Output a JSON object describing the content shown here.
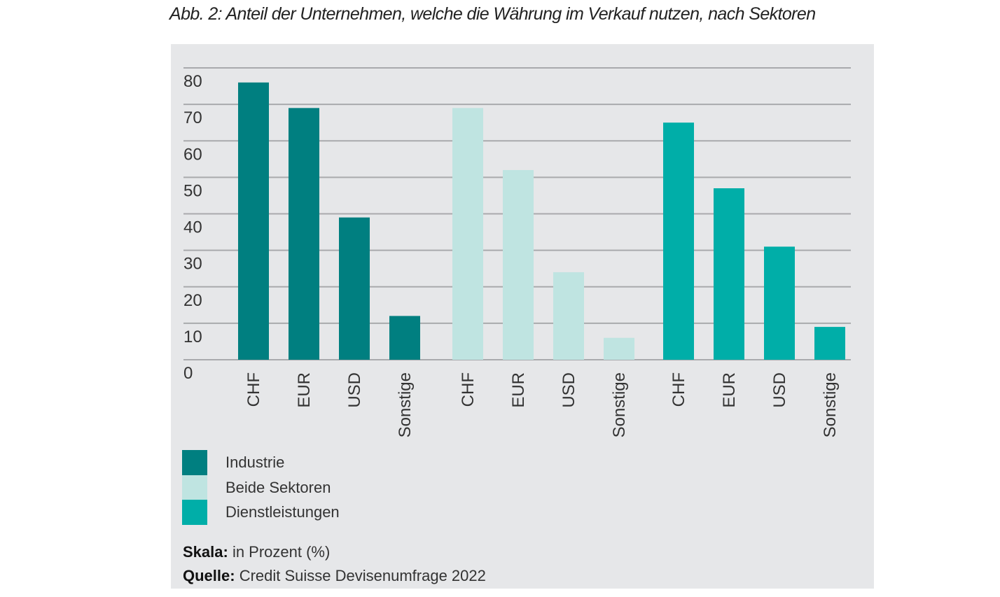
{
  "title": "Abb. 2: Anteil der Unternehmen, welche die Währung im Verkauf nutzen, nach Sektoren",
  "legend": [
    {
      "label": "Industrie",
      "color": "#007f80"
    },
    {
      "label": "Beide Sektoren",
      "color": "#bfe4e1"
    },
    {
      "label": "Dienstleistungen",
      "color": "#00aea8"
    }
  ],
  "notes": {
    "scale_label": "Skala:",
    "scale_value": " in Prozent (%)",
    "source_label": "Quelle:",
    "source_value": " Credit Suisse Devisenumfrage 2022"
  },
  "colors": {
    "panel_background": "#e6e7e9",
    "gridline": "#a9aaad",
    "text": "#333333"
  },
  "chart_data": {
    "type": "bar",
    "title": "Abb. 2: Anteil der Unternehmen, welche die Währung im Verkauf nutzen, nach Sektoren",
    "xlabel": "",
    "ylabel": "in Prozent (%)",
    "ylim": [
      0,
      80
    ],
    "yticks": [
      0,
      10,
      20,
      30,
      40,
      50,
      60,
      70,
      80
    ],
    "grid": true,
    "legend_position": "bottom-left",
    "categories": [
      "CHF",
      "EUR",
      "USD",
      "Sonstige"
    ],
    "series": [
      {
        "name": "Industrie",
        "color": "#007f80",
        "values": [
          76,
          69,
          39,
          12
        ]
      },
      {
        "name": "Beide Sektoren",
        "color": "#bfe4e1",
        "values": [
          69,
          52,
          24,
          6
        ]
      },
      {
        "name": "Dienstleistungen",
        "color": "#00aea8",
        "values": [
          65,
          47,
          31,
          9
        ]
      }
    ],
    "source": "Credit Suisse Devisenumfrage 2022"
  }
}
